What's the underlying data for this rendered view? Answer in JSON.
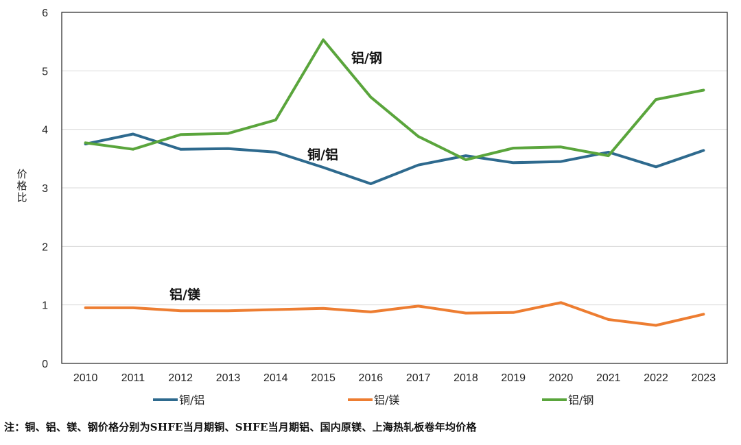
{
  "chart_data": {
    "type": "line",
    "categories": [
      "2010",
      "2011",
      "2012",
      "2013",
      "2014",
      "2015",
      "2016",
      "2017",
      "2018",
      "2019",
      "2020",
      "2021",
      "2022",
      "2023"
    ],
    "ylim": [
      0,
      6
    ],
    "yticks": [
      0,
      1,
      2,
      3,
      4,
      5,
      6
    ],
    "ylabel": "价格比",
    "grid": true,
    "legend": "bottom",
    "series": [
      {
        "name": "铜/铝",
        "color": "#2E6A8E",
        "values": [
          3.75,
          3.92,
          3.66,
          3.67,
          3.61,
          3.35,
          3.07,
          3.39,
          3.55,
          3.43,
          3.45,
          3.61,
          3.36,
          3.64
        ]
      },
      {
        "name": "铝/镁",
        "color": "#ED7D31",
        "values": [
          0.95,
          0.95,
          0.9,
          0.9,
          0.92,
          0.94,
          0.88,
          0.98,
          0.86,
          0.87,
          1.04,
          0.75,
          0.65,
          0.84
        ]
      },
      {
        "name": "铝/钢",
        "color": "#5AA53C",
        "values": [
          3.77,
          3.66,
          3.91,
          3.93,
          4.16,
          5.53,
          4.55,
          3.88,
          3.48,
          3.68,
          3.7,
          3.55,
          4.51,
          4.67
        ]
      }
    ],
    "annotations": [
      {
        "text": "铝/钢",
        "series": 2
      },
      {
        "text": "铜/铝",
        "series": 0
      },
      {
        "text": "铝/镁",
        "series": 1
      }
    ]
  },
  "note": "注：铜、铝、镁、钢价格分别为SHFE当月期铜、SHFE当月期铝、国内原镁、上海热轧板卷年均价格"
}
